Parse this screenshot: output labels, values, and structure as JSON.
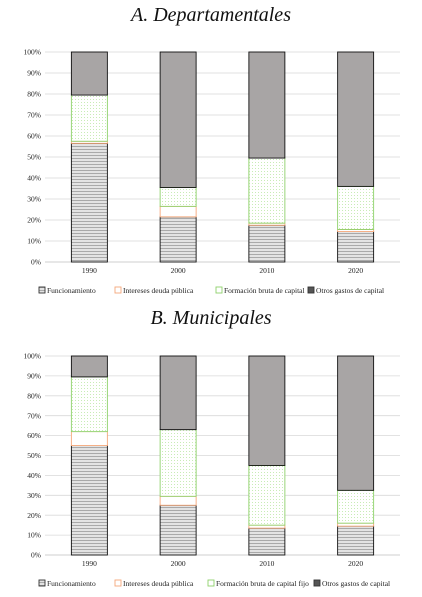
{
  "chart_data": [
    {
      "type": "bar",
      "stacked": true,
      "percent": true,
      "title": "A. Departamentales",
      "categories": [
        "1990",
        "2000",
        "2010",
        "2020"
      ],
      "ylim": [
        0,
        100
      ],
      "yticks": [
        "0%",
        "10%",
        "20%",
        "30%",
        "40%",
        "50%",
        "60%",
        "70%",
        "80%",
        "90%",
        "100%"
      ],
      "grid": true,
      "legend_position": "bottom",
      "series": [
        {
          "name": "Funcionamiento",
          "values": [
            56.5,
            21.5,
            17.5,
            14.5
          ]
        },
        {
          "name": "Intereses deuda pública",
          "values": [
            1,
            5,
            1,
            1
          ]
        },
        {
          "name": "Formación bruta de capital",
          "values": [
            22,
            9,
            31,
            20.5
          ]
        },
        {
          "name": "Otros gastos de capital",
          "values": [
            20.5,
            64.5,
            50.5,
            64
          ]
        }
      ]
    },
    {
      "type": "bar",
      "stacked": true,
      "percent": true,
      "title": "B. Municipales",
      "categories": [
        "1990",
        "2000",
        "2010",
        "2020"
      ],
      "ylim": [
        0,
        100
      ],
      "yticks": [
        "0%",
        "10%",
        "20%",
        "30%",
        "40%",
        "50%",
        "60%",
        "70%",
        "80%",
        "90%",
        "100%"
      ],
      "grid": true,
      "legend_position": "bottom",
      "series": [
        {
          "name": "Funcionamiento",
          "values": [
            55,
            25,
            13.5,
            14.5
          ]
        },
        {
          "name": "Intereses deuda pública",
          "values": [
            7,
            4.5,
            1.5,
            1.5
          ]
        },
        {
          "name": "Formación bruta de capital fijo",
          "values": [
            27.5,
            33.5,
            30,
            16.5
          ]
        },
        {
          "name": "Otros gastos de capital",
          "values": [
            10.5,
            37,
            55,
            67.5
          ]
        }
      ]
    }
  ],
  "colors": {
    "funcionamiento": "#c9c9c9",
    "intereses": "#f4a77a",
    "formacion": "#8fd16a",
    "otros": "#a8a5a5",
    "bar_outline": "#111111",
    "grid": "#d9d9d9"
  }
}
